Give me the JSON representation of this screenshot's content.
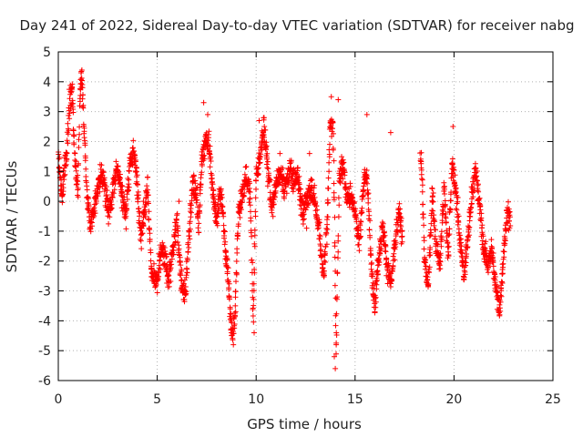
{
  "chart_data": {
    "type": "scatter",
    "title": "Day 241 of 2022, Sidereal Day-to-day VTEC variation (SDTVAR) for receiver nabg",
    "xlabel": "GPS time / hours",
    "ylabel": "SDTVAR / TECUs",
    "xlim": [
      0,
      25
    ],
    "ylim": [
      -6,
      5
    ],
    "xticks": [
      0,
      5,
      10,
      15,
      20,
      25
    ],
    "yticks": [
      -6,
      -5,
      -4,
      -3,
      -2,
      -1,
      0,
      1,
      2,
      3,
      4,
      5
    ],
    "grid": true,
    "marker": "+",
    "color": "#ff0000",
    "series": [
      {
        "name": "SDTVAR",
        "trace": [
          [
            0.0,
            1.8
          ],
          [
            0.1,
            0.6
          ],
          [
            0.2,
            0.2
          ],
          [
            0.3,
            1.0
          ],
          [
            0.45,
            1.8
          ],
          [
            0.55,
            3.2
          ],
          [
            0.7,
            3.7
          ],
          [
            0.85,
            1.2
          ],
          [
            1.0,
            0.5
          ],
          [
            1.1,
            3.8
          ],
          [
            1.2,
            4.2
          ],
          [
            1.3,
            2.5
          ],
          [
            1.45,
            0.3
          ],
          [
            1.6,
            -0.8
          ],
          [
            1.8,
            -0.3
          ],
          [
            2.0,
            0.5
          ],
          [
            2.2,
            1.0
          ],
          [
            2.4,
            0.2
          ],
          [
            2.6,
            -0.4
          ],
          [
            2.8,
            0.6
          ],
          [
            3.0,
            1.2
          ],
          [
            3.2,
            0.3
          ],
          [
            3.4,
            -0.5
          ],
          [
            3.6,
            1.0
          ],
          [
            3.8,
            1.8
          ],
          [
            4.0,
            0.5
          ],
          [
            4.2,
            -1.3
          ],
          [
            4.35,
            -0.3
          ],
          [
            4.5,
            0.6
          ],
          [
            4.7,
            -2.3
          ],
          [
            5.0,
            -2.8
          ],
          [
            5.2,
            -1.6
          ],
          [
            5.4,
            -2.0
          ],
          [
            5.6,
            -2.6
          ],
          [
            5.8,
            -1.6
          ],
          [
            6.0,
            -0.6
          ],
          [
            6.2,
            -2.5
          ],
          [
            6.4,
            -3.2
          ],
          [
            6.6,
            -1.2
          ],
          [
            6.8,
            0.6
          ],
          [
            7.0,
            0.2
          ],
          [
            7.1,
            -0.8
          ],
          [
            7.25,
            1.3
          ],
          [
            7.4,
            1.9
          ],
          [
            7.6,
            2.0
          ],
          [
            7.8,
            0.4
          ],
          [
            8.0,
            -0.6
          ],
          [
            8.2,
            0.5
          ],
          [
            8.4,
            -1.2
          ],
          [
            8.6,
            -2.8
          ],
          [
            8.8,
            -4.6
          ],
          [
            8.95,
            -3.5
          ],
          [
            9.1,
            -0.5
          ],
          [
            9.3,
            0.2
          ],
          [
            9.5,
            0.9
          ],
          [
            9.7,
            0.3
          ],
          [
            9.85,
            -4.0
          ],
          [
            10.0,
            0.8
          ],
          [
            10.2,
            1.5
          ],
          [
            10.4,
            2.5
          ],
          [
            10.6,
            0.9
          ],
          [
            10.8,
            -0.2
          ],
          [
            11.0,
            0.5
          ],
          [
            11.2,
            1.0
          ],
          [
            11.45,
            0.4
          ],
          [
            11.7,
            1.1
          ],
          [
            11.9,
            0.6
          ],
          [
            12.1,
            0.9
          ],
          [
            12.35,
            -0.4
          ],
          [
            12.6,
            0.1
          ],
          [
            12.8,
            0.5
          ],
          [
            13.0,
            -0.2
          ],
          [
            13.2,
            -1.0
          ],
          [
            13.4,
            -2.6
          ],
          [
            13.6,
            -0.6
          ],
          [
            13.75,
            2.8
          ],
          [
            13.9,
            2.2
          ],
          [
            14.05,
            -5.0
          ],
          [
            14.2,
            0.9
          ],
          [
            14.4,
            1.2
          ],
          [
            14.6,
            0.1
          ],
          [
            14.8,
            0.2
          ],
          [
            15.0,
            -0.4
          ],
          [
            15.2,
            -1.4
          ],
          [
            15.4,
            0.4
          ],
          [
            15.6,
            1.0
          ],
          [
            15.8,
            -2.0
          ],
          [
            16.0,
            -3.4
          ],
          [
            16.2,
            -1.8
          ],
          [
            16.4,
            -0.9
          ],
          [
            16.6,
            -2.0
          ],
          [
            16.8,
            -2.8
          ],
          [
            17.0,
            -1.6
          ],
          [
            17.2,
            -0.4
          ],
          [
            17.4,
            -1.1
          ],
          [
            18.3,
            1.6
          ],
          [
            18.4,
            0.6
          ],
          [
            18.5,
            -2.0
          ],
          [
            18.7,
            -2.8
          ],
          [
            18.9,
            0.3
          ],
          [
            19.1,
            -1.6
          ],
          [
            19.3,
            -2.1
          ],
          [
            19.5,
            0.4
          ],
          [
            19.7,
            -1.8
          ],
          [
            19.9,
            1.2
          ],
          [
            20.1,
            0.3
          ],
          [
            20.3,
            -1.3
          ],
          [
            20.5,
            -2.5
          ],
          [
            20.7,
            -1.2
          ],
          [
            20.9,
            0.2
          ],
          [
            21.1,
            1.0
          ],
          [
            21.3,
            -0.2
          ],
          [
            21.5,
            -1.5
          ],
          [
            21.7,
            -2.2
          ],
          [
            21.9,
            -1.6
          ],
          [
            22.1,
            -2.8
          ],
          [
            22.3,
            -3.6
          ],
          [
            22.5,
            -2.0
          ],
          [
            22.7,
            -0.3
          ],
          [
            22.85,
            -0.8
          ]
        ],
        "outliers": [
          [
            14.0,
            -5.6
          ],
          [
            13.95,
            -5.2
          ],
          [
            14.05,
            -4.4
          ],
          [
            8.85,
            -4.8
          ],
          [
            8.75,
            -4.4
          ],
          [
            9.9,
            -4.4
          ],
          [
            16.0,
            -3.7
          ],
          [
            22.3,
            -3.8
          ],
          [
            7.35,
            3.3
          ],
          [
            7.55,
            2.9
          ],
          [
            13.8,
            3.5
          ],
          [
            14.15,
            3.4
          ],
          [
            10.4,
            2.8
          ],
          [
            10.15,
            2.7
          ],
          [
            15.6,
            2.9
          ],
          [
            16.8,
            2.3
          ],
          [
            19.95,
            2.5
          ],
          [
            1.15,
            4.3
          ],
          [
            0.7,
            3.8
          ],
          [
            12.55,
            -0.9
          ],
          [
            11.2,
            1.6
          ],
          [
            12.7,
            1.6
          ],
          [
            4.3,
            0.0
          ],
          [
            6.1,
            0.0
          ]
        ]
      }
    ]
  }
}
